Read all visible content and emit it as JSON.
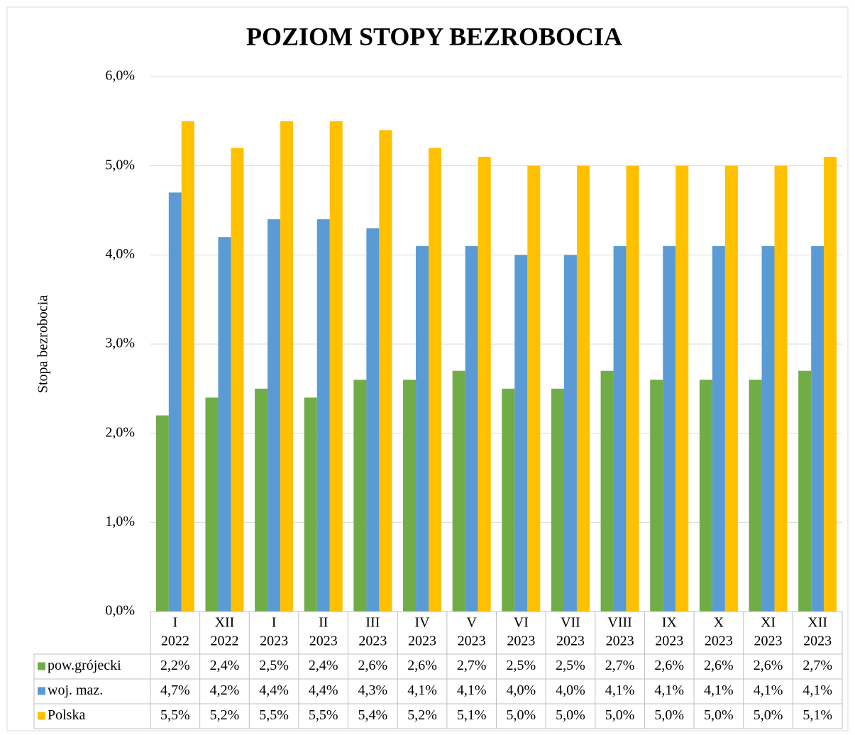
{
  "chart_data": {
    "type": "bar",
    "title": "POZIOM STOPY BEZROBOCIA",
    "y_label": "Stopa bezrobocia",
    "categories": [
      [
        "I",
        "2022"
      ],
      [
        "XII",
        "2022"
      ],
      [
        "I",
        "2023"
      ],
      [
        "II",
        "2023"
      ],
      [
        "III",
        "2023"
      ],
      [
        "IV",
        "2023"
      ],
      [
        "V",
        "2023"
      ],
      [
        "VI",
        "2023"
      ],
      [
        "VII",
        "2023"
      ],
      [
        "VIII",
        "2023"
      ],
      [
        "IX",
        "2023"
      ],
      [
        "X",
        "2023"
      ],
      [
        "XI",
        "2023"
      ],
      [
        "XII",
        "2023"
      ]
    ],
    "series": [
      {
        "name": "pow.grójecki",
        "color": "#70ad47",
        "values": [
          2.2,
          2.4,
          2.5,
          2.4,
          2.6,
          2.6,
          2.7,
          2.5,
          2.5,
          2.7,
          2.6,
          2.6,
          2.6,
          2.7
        ],
        "value_labels": [
          "2,2%",
          "2,4%",
          "2,5%",
          "2,4%",
          "2,6%",
          "2,6%",
          "2,7%",
          "2,5%",
          "2,5%",
          "2,7%",
          "2,6%",
          "2,6%",
          "2,6%",
          "2,7%"
        ]
      },
      {
        "name": "woj. maz.",
        "color": "#5b9bd5",
        "values": [
          4.7,
          4.2,
          4.4,
          4.4,
          4.3,
          4.1,
          4.1,
          4.0,
          4.0,
          4.1,
          4.1,
          4.1,
          4.1,
          4.1
        ],
        "value_labels": [
          "4,7%",
          "4,2%",
          "4,4%",
          "4,4%",
          "4,3%",
          "4,1%",
          "4,1%",
          "4,0%",
          "4,0%",
          "4,1%",
          "4,1%",
          "4,1%",
          "4,1%",
          "4,1%"
        ]
      },
      {
        "name": "Polska",
        "color": "#ffc000",
        "values": [
          5.5,
          5.2,
          5.5,
          5.5,
          5.4,
          5.2,
          5.1,
          5.0,
          5.0,
          5.0,
          5.0,
          5.0,
          5.0,
          5.1
        ],
        "value_labels": [
          "5,5%",
          "5,2%",
          "5,5%",
          "5,5%",
          "5,4%",
          "5,2%",
          "5,1%",
          "5,0%",
          "5,0%",
          "5,0%",
          "5,0%",
          "5,0%",
          "5,0%",
          "5,1%"
        ]
      }
    ],
    "ylim": [
      0,
      6
    ],
    "yticks": [
      {
        "value": 0,
        "label": "0,0%"
      },
      {
        "value": 1,
        "label": "1,0%"
      },
      {
        "value": 2,
        "label": "2,0%"
      },
      {
        "value": 3,
        "label": "3,0%"
      },
      {
        "value": 4,
        "label": "4,0%"
      },
      {
        "value": 5,
        "label": "5,0%"
      },
      {
        "value": 6,
        "label": "6,0%"
      }
    ],
    "grid": true,
    "data_table": true
  }
}
